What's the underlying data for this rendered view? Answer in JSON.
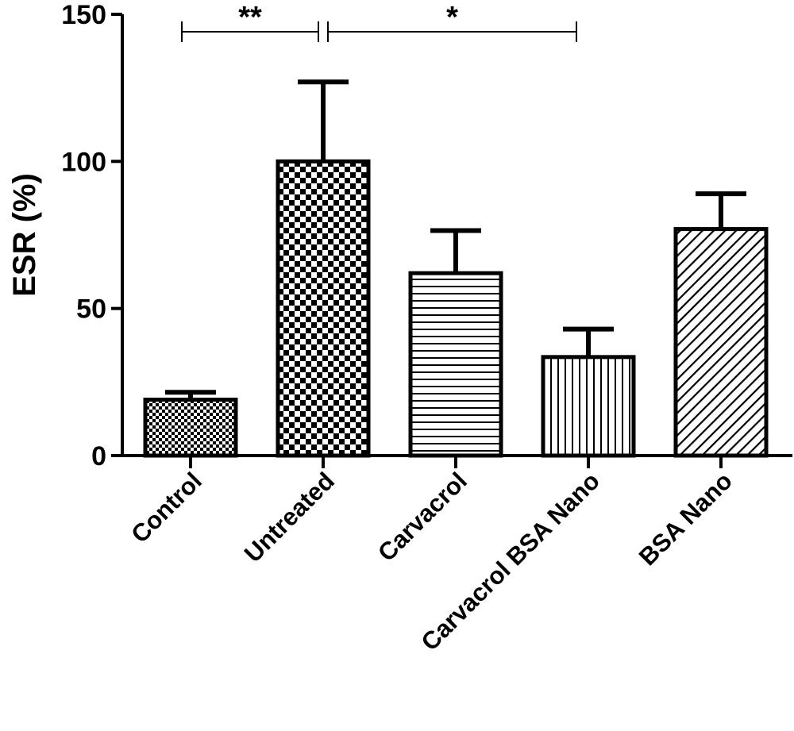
{
  "chart_data": {
    "type": "bar",
    "title": "",
    "xlabel": "",
    "ylabel": "ESR (%)",
    "ylim": [
      0,
      150
    ],
    "yticks": [
      0,
      50,
      100,
      150
    ],
    "grid": false,
    "categories": [
      "Control",
      "Untreated",
      "Carvacrol",
      "Carvacrol BSA Nano",
      "BSA Nano"
    ],
    "values": [
      19,
      100,
      62,
      33.5,
      77
    ],
    "errors": [
      2.5,
      27,
      14.5,
      9.5,
      12
    ],
    "patterns": [
      "fine-checker",
      "checker",
      "horizontal-lines",
      "vertical-lines",
      "diagonal-lines"
    ],
    "significance": [
      {
        "from": "Control",
        "to": "Untreated",
        "label": "**"
      },
      {
        "from": "Untreated",
        "to": "Carvacrol BSA Nano",
        "label": "*"
      }
    ]
  }
}
